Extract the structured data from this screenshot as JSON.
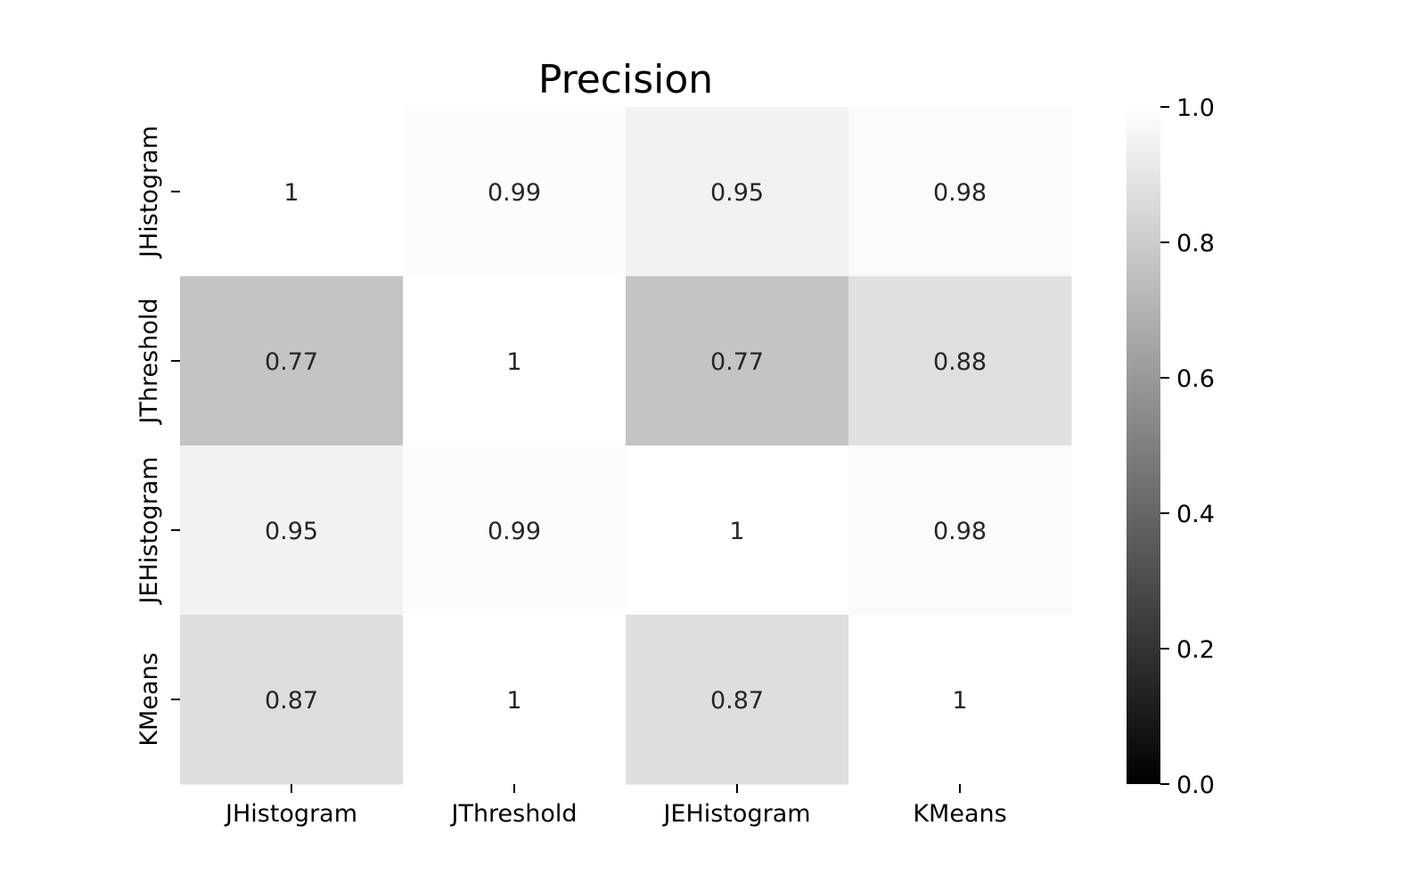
{
  "chart_data": {
    "type": "heatmap",
    "title": "Precision",
    "xlabel": "",
    "ylabel": "",
    "x_categories": [
      "JHistogram",
      "JThreshold",
      "JEHistogram",
      "KMeans"
    ],
    "y_categories": [
      "JHistogram",
      "JThreshold",
      "JEHistogram",
      "KMeans"
    ],
    "values": [
      [
        1.0,
        0.99,
        0.95,
        0.98
      ],
      [
        0.77,
        1.0,
        0.77,
        0.88
      ],
      [
        0.95,
        0.99,
        1.0,
        0.98
      ],
      [
        0.87,
        1.0,
        0.87,
        1.0
      ]
    ],
    "annotations": [
      [
        "1",
        "0.99",
        "0.95",
        "0.98"
      ],
      [
        "0.77",
        "1",
        "0.77",
        "0.88"
      ],
      [
        "0.95",
        "0.99",
        "1",
        "0.98"
      ],
      [
        "0.87",
        "1",
        "0.87",
        "1"
      ]
    ],
    "colormap": "gray",
    "colorbar": {
      "vmin": 0.0,
      "vmax": 1.0,
      "ticks": [
        "0.0",
        "0.2",
        "0.4",
        "0.6",
        "0.8",
        "1.0"
      ],
      "low_color": "#000000",
      "high_color": "#ffffff"
    },
    "legend": "colorbar at right",
    "grid": false
  }
}
